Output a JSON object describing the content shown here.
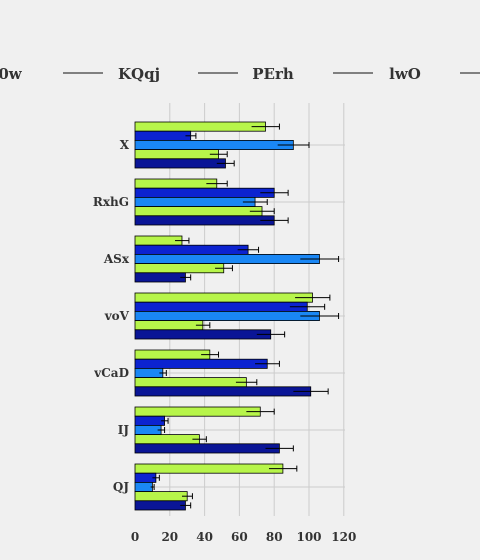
{
  "chart_data": {
    "type": "bar",
    "orientation": "horizontal",
    "categories": [
      "X",
      "RxhG",
      "ASx",
      "voV",
      "vCaD",
      "IJ",
      "QJ"
    ],
    "series": [
      {
        "name": "0w",
        "color": "#b7f54a",
        "values": [
          75,
          47,
          27,
          102,
          43,
          72,
          85
        ],
        "errors": [
          8,
          6,
          4,
          10,
          5,
          8,
          8
        ]
      },
      {
        "name": "KQqj",
        "color": "#0c23d0",
        "values": [
          32,
          80,
          65,
          99,
          76,
          17,
          12
        ],
        "errors": [
          3,
          8,
          6,
          10,
          7,
          2,
          2
        ]
      },
      {
        "name": "PErh",
        "color": "#1a87f5",
        "values": [
          91,
          69,
          106,
          106,
          16,
          15,
          10
        ],
        "errors": [
          9,
          7,
          11,
          11,
          2,
          2,
          1
        ]
      },
      {
        "name": "lwO",
        "color": "#b7f54a",
        "values": [
          48,
          73,
          51,
          39,
          64,
          37,
          30
        ],
        "errors": [
          5,
          7,
          5,
          4,
          6,
          4,
          3
        ]
      },
      {
        "name": "",
        "color": "#0a1596",
        "values": [
          52,
          80,
          29,
          78,
          101,
          83,
          29
        ],
        "errors": [
          5,
          8,
          3,
          8,
          10,
          8,
          3
        ]
      }
    ],
    "xlim": [
      0,
      120
    ],
    "xticks": [
      0,
      20,
      40,
      60,
      80,
      100,
      120
    ],
    "grid": true,
    "legend_position": "top"
  }
}
